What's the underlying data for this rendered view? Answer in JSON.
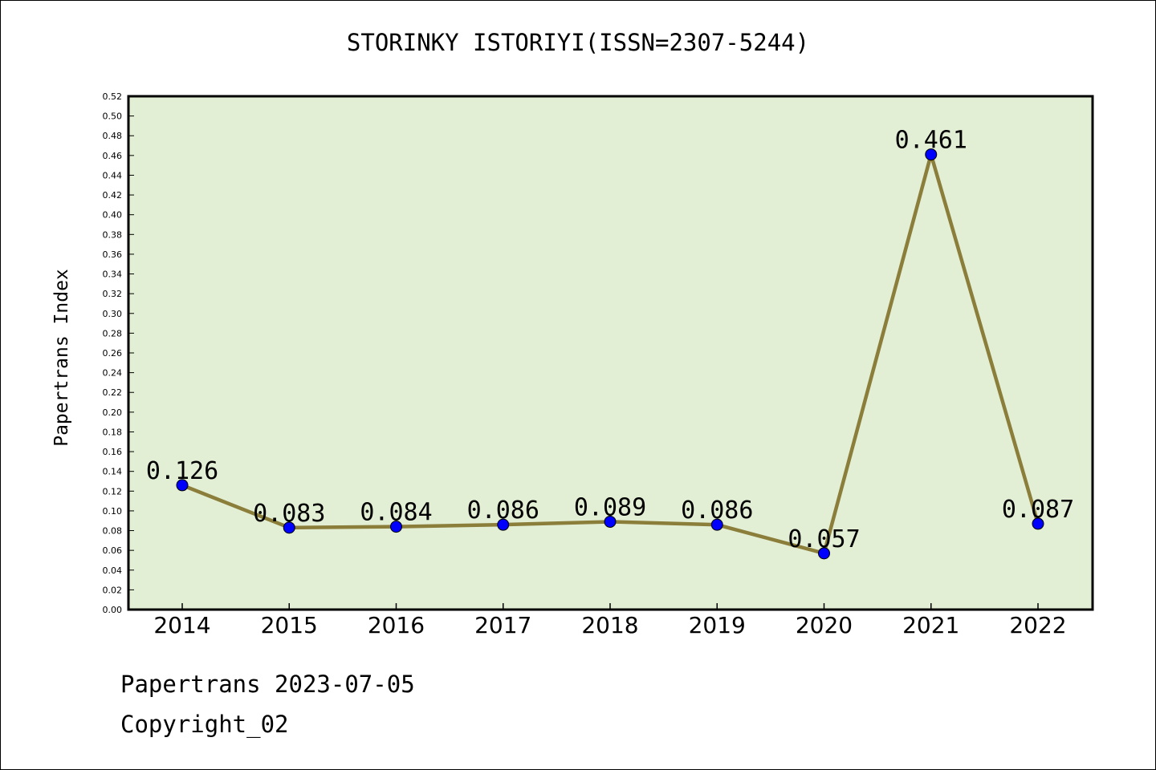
{
  "chart_data": {
    "type": "line",
    "title": "STORINKY ISTORIYI(ISSN=2307-5244)",
    "xlabel": "",
    "ylabel": "Papertrans Index",
    "categories": [
      "2014",
      "2015",
      "2016",
      "2017",
      "2018",
      "2019",
      "2020",
      "2021",
      "2022"
    ],
    "series": [
      {
        "values": [
          0.126,
          0.083,
          0.084,
          0.086,
          0.089,
          0.086,
          0.057,
          0.461,
          0.087
        ],
        "data_labels": [
          "0.126",
          "0.083",
          "0.084",
          "0.086",
          "0.089",
          "0.086",
          "0.057",
          "0.461",
          "0.087"
        ]
      }
    ],
    "ylim": [
      0,
      0.52
    ],
    "y_ticks": [
      "0.00",
      "0.02",
      "0.04",
      "0.06",
      "0.08",
      "0.10",
      "0.12",
      "0.14",
      "0.16",
      "0.18",
      "0.20",
      "0.22",
      "0.24",
      "0.26",
      "0.28",
      "0.30",
      "0.32",
      "0.34",
      "0.36",
      "0.38",
      "0.40",
      "0.42",
      "0.44",
      "0.46",
      "0.48",
      "0.50",
      "0.52"
    ],
    "grid": false,
    "legend": "none",
    "colors": {
      "line": "#8b7d3a",
      "marker": "#0000ff",
      "plot_bg": "#e2efd5"
    }
  },
  "footer": {
    "date_line": "Papertrans 2023-07-05",
    "copyright": "Copyright_02"
  }
}
